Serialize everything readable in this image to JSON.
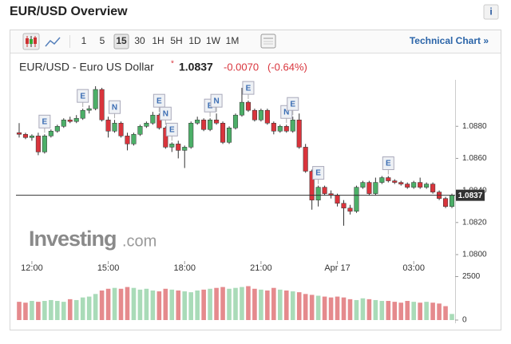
{
  "header": {
    "title": "EUR/USD Overview",
    "info": "i"
  },
  "toolbar": {
    "buttons": [
      "1",
      "5",
      "15",
      "30",
      "1H",
      "5H",
      "1D",
      "1W",
      "1M"
    ],
    "active": 2,
    "link": "Technical Chart »"
  },
  "quote": {
    "name": "EUR/USD - Euro US Dollar",
    "change": "-0.0070",
    "change_pct": "(-0.64%)"
  },
  "watermark": {
    "brand": "Investing",
    "domain": ".com"
  },
  "chart_data": {
    "type": "candlestick",
    "up_color": "#4caf68",
    "down_color": "#d9343c",
    "open": [
      1.0876,
      1.0875,
      1.0873,
      1.0874,
      1.0864,
      1.0874,
      1.0877,
      1.088,
      1.0884,
      1.0883,
      1.0885,
      1.089,
      1.0891,
      1.0903,
      1.0884,
      1.0877,
      1.0882,
      1.0874,
      1.0869,
      1.0875,
      1.088,
      1.0882,
      1.0887,
      1.0879,
      1.0867,
      1.0869,
      1.0865,
      1.0867,
      1.0882,
      1.0884,
      1.0878,
      1.0884,
      1.0882,
      1.087,
      1.0879,
      1.0887,
      1.0895,
      1.089,
      1.0884,
      1.089,
      1.0882,
      1.0877,
      1.088,
      1.0877,
      1.0884,
      1.0867,
      1.0852,
      1.0834,
      1.0842,
      1.0838,
      1.0837,
      1.0832,
      1.0829,
      1.0827,
      1.0842,
      1.0845,
      1.0838,
      1.0845,
      1.0848,
      1.0846,
      1.0845,
      1.0844,
      1.0842,
      1.0845,
      1.0842,
      1.0844,
      1.0839,
      1.0835,
      1.083
    ],
    "high": [
      1.0882,
      1.0876,
      1.0875,
      1.0876,
      1.0875,
      1.0878,
      1.0881,
      1.0885,
      1.0886,
      1.0887,
      1.0891,
      1.0893,
      1.0905,
      1.0904,
      1.0886,
      1.0884,
      1.0883,
      1.0876,
      1.0876,
      1.0881,
      1.0883,
      1.0889,
      1.0888,
      1.088,
      1.087,
      1.0871,
      1.0868,
      1.0883,
      1.0886,
      1.0885,
      1.0885,
      1.0888,
      1.0883,
      1.088,
      1.0888,
      1.0904,
      1.0896,
      1.0891,
      1.0891,
      1.0891,
      1.0883,
      1.0881,
      1.0881,
      1.0886,
      1.0888,
      1.0869,
      1.0853,
      1.0843,
      1.0843,
      1.084,
      1.0838,
      1.0834,
      1.0831,
      1.0843,
      1.0846,
      1.0846,
      1.0848,
      1.0849,
      1.0849,
      1.0847,
      1.0846,
      1.0845,
      1.0846,
      1.0848,
      1.0845,
      1.0845,
      1.084,
      1.0836,
      1.0838
    ],
    "low": [
      1.0873,
      1.0872,
      1.0871,
      1.0862,
      1.0863,
      1.0873,
      1.0876,
      1.0879,
      1.0882,
      1.0882,
      1.0884,
      1.0888,
      1.089,
      1.0883,
      1.0873,
      1.0876,
      1.0873,
      1.0865,
      1.0868,
      1.0874,
      1.0879,
      1.0881,
      1.0878,
      1.0866,
      1.0864,
      1.086,
      1.0854,
      1.0866,
      1.0881,
      1.0877,
      1.0877,
      1.0881,
      1.0869,
      1.0869,
      1.0878,
      1.0886,
      1.0889,
      1.0883,
      1.0883,
      1.0881,
      1.0875,
      1.0876,
      1.0876,
      1.0876,
      1.0866,
      1.0851,
      1.0828,
      1.083,
      1.0837,
      1.0835,
      1.083,
      1.0818,
      1.0825,
      1.0826,
      1.0841,
      1.0837,
      1.0837,
      1.0844,
      1.0845,
      1.0844,
      1.0843,
      1.0841,
      1.0841,
      1.0841,
      1.0841,
      1.0838,
      1.0834,
      1.0829,
      1.0829
    ],
    "close": [
      1.0875,
      1.0873,
      1.0874,
      1.0864,
      1.0874,
      1.0877,
      1.088,
      1.0884,
      1.0883,
      1.0885,
      1.089,
      1.0891,
      1.0903,
      1.0884,
      1.0877,
      1.0882,
      1.0874,
      1.0869,
      1.0875,
      1.088,
      1.0882,
      1.0887,
      1.0879,
      1.0867,
      1.0869,
      1.0865,
      1.0867,
      1.0882,
      1.0884,
      1.0878,
      1.0884,
      1.0882,
      1.087,
      1.0879,
      1.0887,
      1.0895,
      1.089,
      1.0884,
      1.089,
      1.0882,
      1.0877,
      1.088,
      1.0877,
      1.0884,
      1.0867,
      1.0852,
      1.0834,
      1.0842,
      1.0838,
      1.0837,
      1.0832,
      1.0829,
      1.0827,
      1.0842,
      1.0845,
      1.0838,
      1.0845,
      1.0848,
      1.0846,
      1.0845,
      1.0844,
      1.0842,
      1.0845,
      1.0842,
      1.0844,
      1.0839,
      1.0835,
      1.083,
      1.0837
    ],
    "last": 1.0837,
    "ylim": [
      1.0797,
      1.0909
    ],
    "yticks": [
      {
        "value": 1.08,
        "label": "1.0800"
      },
      {
        "value": 1.082,
        "label": "1.0820"
      },
      {
        "value": 1.084,
        "label": "1.0840"
      },
      {
        "value": 1.086,
        "label": "1.0860"
      },
      {
        "value": 1.088,
        "label": "1.0880"
      }
    ],
    "xlim": [
      -0.5,
      68.5
    ],
    "xticks": [
      {
        "value": 2,
        "label": "12:00"
      },
      {
        "value": 14,
        "label": "15:00"
      },
      {
        "value": 26,
        "label": "18:00"
      },
      {
        "value": 38,
        "label": "21:00"
      },
      {
        "value": 50,
        "label": "Apr 17"
      },
      {
        "value": 62,
        "label": "03:00"
      }
    ],
    "events": [
      {
        "label": "E",
        "candle": 4
      },
      {
        "label": "E",
        "candle": 10
      },
      {
        "label": "N",
        "candle": 15
      },
      {
        "label": "E",
        "candle": 22
      },
      {
        "label": "N",
        "candle": 23
      },
      {
        "label": "E",
        "candle": 24
      },
      {
        "label": "E",
        "candle": 30
      },
      {
        "label": "N",
        "candle": 31
      },
      {
        "label": "E",
        "candle": 36
      },
      {
        "label": "N",
        "candle": 42
      },
      {
        "label": "E",
        "candle": 43
      },
      {
        "label": "E",
        "candle": 47
      },
      {
        "label": "E",
        "candle": 58
      }
    ],
    "volume": {
      "values": [
        1050,
        1000,
        1100,
        1050,
        1100,
        1150,
        1100,
        1050,
        1200,
        1150,
        1300,
        1350,
        1500,
        1700,
        1800,
        1850,
        1800,
        1900,
        1850,
        1750,
        1800,
        1700,
        1650,
        1800,
        1750,
        1700,
        1650,
        1600,
        1700,
        1750,
        1800,
        1850,
        1900,
        1800,
        1850,
        1900,
        1950,
        1800,
        1750,
        1700,
        1850,
        1750,
        1700,
        1650,
        1600,
        1500,
        1450,
        1400,
        1350,
        1300,
        1350,
        1300,
        1200,
        1150,
        1250,
        1200,
        1150,
        1100,
        1100,
        1050,
        1000,
        1100,
        1050,
        1000,
        1050,
        1000,
        950,
        800,
        350
      ],
      "up_color": "#a9dbb8",
      "down_color": "#e58a8d",
      "ylim": [
        0,
        2800
      ],
      "yticks": [
        0,
        2500
      ]
    }
  }
}
